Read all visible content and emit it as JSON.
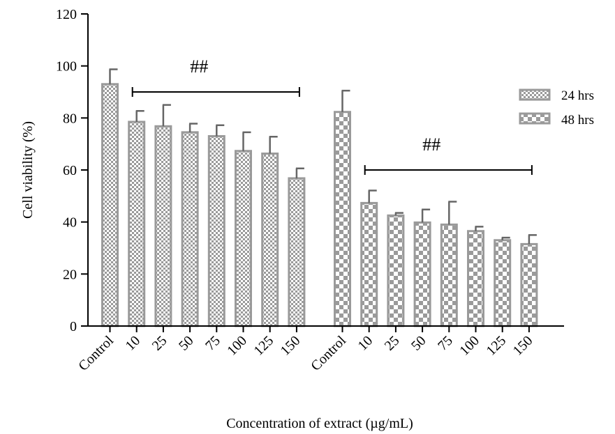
{
  "chart_data": {
    "type": "bar",
    "ylabel": "Cell viability (%)",
    "xlabel": "Concentration of extract (µg/mL)",
    "ylim": [
      0,
      120
    ],
    "yticks": [
      0,
      20,
      40,
      60,
      80,
      100,
      120
    ],
    "legend_position": "right",
    "series": [
      {
        "name": "24 hrs",
        "pattern": "fine-checker",
        "color": "#9a9a9a",
        "categories": [
          "Control",
          "10",
          "25",
          "50",
          "75",
          "100",
          "125",
          "150"
        ],
        "values": [
          93,
          78.5,
          76.8,
          74.5,
          73,
          67.3,
          66.3,
          56.8
        ],
        "errors": [
          5.7,
          4.2,
          8.2,
          3.3,
          4.2,
          7.2,
          6.5,
          3.8
        ]
      },
      {
        "name": "48 hrs",
        "pattern": "coarse-checker",
        "color": "#9a9a9a",
        "categories": [
          "Control",
          "10",
          "25",
          "50",
          "75",
          "100",
          "125",
          "150"
        ],
        "values": [
          82.3,
          47.3,
          42.5,
          39.8,
          39,
          36.5,
          33,
          31.5
        ],
        "errors": [
          8.2,
          4.8,
          1.0,
          5.0,
          8.8,
          1.7,
          1.0,
          3.5
        ]
      }
    ],
    "annotations": [
      {
        "text": "##",
        "bracket_from": "10",
        "bracket_to": "150",
        "series": "24 hrs",
        "bracket_y": 90
      },
      {
        "text": "##",
        "bracket_from": "10",
        "bracket_to": "150",
        "series": "48 hrs",
        "bracket_y": 60
      }
    ]
  }
}
